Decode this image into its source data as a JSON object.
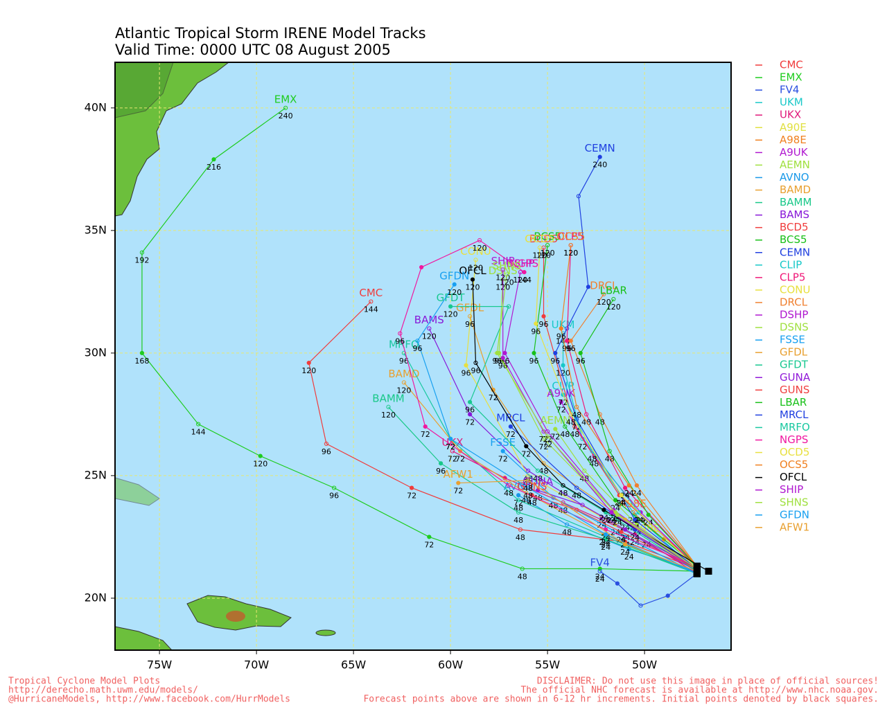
{
  "chart_data": {
    "type": "line",
    "title": "Atlantic Tropical Storm IRENE Model Tracks",
    "subtitle": "Valid Time: 0000 UTC 08 August 2005",
    "xlim": [
      -77.29,
      -45.54
    ],
    "ylim": [
      17.88,
      41.86
    ],
    "xticks": [
      {
        "value": -75,
        "label": "75W"
      },
      {
        "value": -70,
        "label": "70W"
      },
      {
        "value": -65,
        "label": "65W"
      },
      {
        "value": -60,
        "label": "60W"
      },
      {
        "value": -55,
        "label": "55W"
      },
      {
        "value": -50,
        "label": "50W"
      }
    ],
    "yticks": [
      {
        "value": 20,
        "label": "20N"
      },
      {
        "value": 25,
        "label": "25N"
      },
      {
        "value": 30,
        "label": "30N"
      },
      {
        "value": 35,
        "label": "35N"
      },
      {
        "value": 40,
        "label": "40N"
      }
    ],
    "grid": true,
    "series": [
      {
        "name": "CMC",
        "color": "#f03c3c",
        "x": [
          -47.3,
          -51,
          -56.4,
          -62.0,
          -66.4,
          -67.3,
          -64.1
        ],
        "values": [
          21.2,
          22.3,
          22.8,
          24.5,
          26.3,
          29.6,
          32.1
        ],
        "hours": [
          null,
          null,
          48,
          72,
          96,
          120,
          144
        ]
      },
      {
        "name": "EMX",
        "color": "#1ecc1e",
        "x": [
          -47.3,
          -52.3,
          -56.3,
          -61.1,
          -66.0,
          -69.8,
          -73.0,
          -75.9,
          -75.9,
          -72.2,
          -68.5
        ],
        "values": [
          21.1,
          21.2,
          21.2,
          22.5,
          24.5,
          25.8,
          27.1,
          30.0,
          34.1,
          37.9,
          40.0
        ],
        "hours": [
          null,
          24,
          48,
          72,
          96,
          120,
          144,
          168,
          192,
          216,
          240
        ]
      },
      {
        "name": "FV4",
        "color": "#2a4fe0",
        "x": [
          -47.3,
          -48.8,
          -50.2,
          -51.4,
          -52.3
        ],
        "values": [
          21.0,
          20.1,
          19.7,
          20.6,
          21.1
        ],
        "hours": [
          null,
          null,
          null,
          null,
          24
        ]
      },
      {
        "name": "UKM",
        "color": "#18c8c8",
        "x": [
          -47.3,
          -50.5,
          -53.2,
          -54.2,
          -54.2
        ],
        "values": [
          21.1,
          23.4,
          26.5,
          29.5,
          30.8
        ],
        "hours": [
          null,
          24,
          72,
          120,
          144
        ]
      },
      {
        "name": "UKX",
        "color": "#e0187a",
        "x": [
          -47.3,
          -50.5,
          -54.2,
          -57.2,
          -59.9
        ],
        "values": [
          21.0,
          22.6,
          23.9,
          24.9,
          26.0
        ],
        "hours": [
          null,
          24,
          48,
          null,
          72
        ]
      },
      {
        "name": "A90E",
        "color": "#e0e040",
        "x": [
          -47.3,
          -48.6,
          -49.9
        ],
        "values": [
          21.2,
          21.8,
          22.5
        ],
        "hours": [
          null,
          null,
          24
        ]
      },
      {
        "name": "A98E",
        "color": "#f08020",
        "x": [
          -47.3,
          -49.0,
          -50.6
        ],
        "values": [
          21.3,
          22.4,
          23.5
        ],
        "hours": [
          null,
          null,
          24
        ]
      },
      {
        "name": "A9UK",
        "color": "#b018d0",
        "x": [
          -47.3,
          -50.2,
          -52.6,
          -54.3
        ],
        "values": [
          21.3,
          23.5,
          25.8,
          28.0
        ],
        "hours": [
          null,
          24,
          48,
          72
        ]
      },
      {
        "name": "AEMN",
        "color": "#a0e040",
        "x": [
          -47.3,
          -50.4,
          -53.1,
          -54.6
        ],
        "values": [
          21.2,
          23.0,
          25.2,
          26.9
        ],
        "hours": [
          null,
          24,
          48,
          72
        ]
      },
      {
        "name": "AVNO",
        "color": "#1898e8",
        "x": [
          -47.3,
          -50.8,
          -54.0,
          -56.5
        ],
        "values": [
          21.1,
          22.0,
          23.0,
          24.2
        ],
        "hours": [
          null,
          24,
          48,
          72
        ]
      },
      {
        "name": "BAMD",
        "color": "#e8a030",
        "x": [
          -47.3,
          -52.1,
          -56.1,
          -59.5,
          -62.4
        ],
        "values": [
          21.0,
          22.6,
          24.3,
          26.0,
          28.8
        ],
        "hours": [
          null,
          24,
          48,
          72,
          120
        ]
      },
      {
        "name": "BAMM",
        "color": "#18c888",
        "x": [
          -47.3,
          -52.0,
          -56.5,
          -60.5,
          -63.2
        ],
        "values": [
          21.0,
          22.4,
          23.5,
          25.5,
          27.8
        ],
        "hours": [
          null,
          24,
          48,
          96,
          120
        ]
      },
      {
        "name": "BAMS",
        "color": "#8818d8",
        "x": [
          -47.3,
          -52.2,
          -56.0,
          -59.0,
          -61.1
        ],
        "values": [
          21.1,
          23.3,
          25.2,
          27.5,
          31.0
        ],
        "hours": [
          null,
          24,
          48,
          72,
          120
        ]
      },
      {
        "name": "BCD5",
        "color": "#f03c3c",
        "x": [
          -47.3,
          -51.3,
          -53.6,
          -55.2,
          -55.2
        ],
        "values": [
          21.3,
          24.2,
          27.0,
          31.5,
          34.3
        ],
        "hours": [
          null,
          24,
          48,
          96,
          120
        ]
      },
      {
        "name": "BCS5",
        "color": "#18c018",
        "x": [
          -47.3,
          -51.5,
          -54.1,
          -55.7,
          -55.0
        ],
        "values": [
          21.3,
          24.0,
          27.0,
          30.0,
          34.4
        ],
        "hours": [
          null,
          24,
          48,
          96,
          120
        ]
      },
      {
        "name": "CEMN",
        "color": "#2040e0",
        "x": [
          -47.3,
          -50.5,
          -53.5,
          -54.6,
          -54.0,
          -52.9,
          -53.4,
          -52.3
        ],
        "values": [
          21.2,
          23.2,
          27.3,
          30.0,
          31.0,
          32.7,
          36.4,
          38.0
        ],
        "hours": [
          null,
          24,
          72,
          96,
          null,
          null,
          null,
          240
        ]
      },
      {
        "name": "CLIP",
        "color": "#18c8c8",
        "x": [
          -47.3,
          -50.3,
          -52.7,
          -54.2
        ],
        "values": [
          21.2,
          23.5,
          26.0,
          28.3
        ],
        "hours": [
          null,
          24,
          48,
          72
        ]
      },
      {
        "name": "CLP5",
        "color": "#f01878",
        "x": [
          -47.3,
          -51.0,
          -53.0,
          -54.0,
          -53.8
        ],
        "values": [
          21.3,
          24.5,
          27.5,
          30.5,
          34.4
        ],
        "hours": [
          null,
          24,
          48,
          96,
          120
        ]
      },
      {
        "name": "CONU",
        "color": "#e8e040",
        "x": [
          -47.3,
          -51.5,
          -56.0,
          -59.2,
          -58.7
        ],
        "values": [
          21.2,
          23.0,
          25.0,
          29.5,
          33.8
        ],
        "hours": [
          null,
          24,
          48,
          96,
          120
        ]
      },
      {
        "name": "DRCL",
        "color": "#f08030",
        "x": [
          -47.3,
          -50.4,
          -52.3,
          -53.8,
          -52.1
        ],
        "values": [
          21.3,
          24.6,
          27.5,
          30.5,
          32.4
        ],
        "hours": [
          null,
          24,
          48,
          96,
          120
        ]
      },
      {
        "name": "DSHP",
        "color": "#b018d0",
        "x": [
          -47.3,
          -51.6,
          -55.0,
          -57.2,
          -56.4
        ],
        "values": [
          21.2,
          23.6,
          26.8,
          30.0,
          33.3
        ],
        "hours": [
          null,
          24,
          72,
          96,
          120
        ]
      },
      {
        "name": "DSNS",
        "color": "#a0e040",
        "x": [
          -47.3,
          -51.5,
          -55.2,
          -57.5,
          -57.3
        ],
        "values": [
          21.2,
          23.5,
          26.5,
          30.0,
          33.0
        ],
        "hours": [
          null,
          24,
          72,
          96,
          120
        ]
      },
      {
        "name": "FSSE",
        "color": "#18a0f0",
        "x": [
          -47.3,
          -51.0,
          -54.7,
          -57.3
        ],
        "values": [
          21.0,
          22.5,
          24.1,
          26.0
        ],
        "hours": [
          null,
          24,
          48,
          72
        ]
      },
      {
        "name": "GFDL",
        "color": "#e8a030",
        "x": [
          -47.3,
          -51.0,
          -55.2,
          -57.8,
          -59.0
        ],
        "values": [
          21.1,
          23.2,
          25.5,
          28.5,
          31.5
        ],
        "hours": [
          null,
          24,
          48,
          72,
          96
        ]
      },
      {
        "name": "GFDT",
        "color": "#18c890",
        "x": [
          -47.3,
          -52.0,
          -55.5,
          -59.0,
          -57.0,
          -60.0
        ],
        "values": [
          21.1,
          23.5,
          25.2,
          28.0,
          31.9,
          31.9
        ],
        "hours": [
          null,
          24,
          48,
          96,
          null,
          120
        ]
      },
      {
        "name": "GUNA",
        "color": "#9018d8",
        "x": [
          -47.3,
          -51.0,
          -53.2,
          -55.5
        ],
        "values": [
          21.2,
          22.8,
          23.8,
          24.4
        ],
        "hours": [
          null,
          24,
          null,
          48
        ]
      },
      {
        "name": "GUNS",
        "color": "#f04040",
        "x": [
          -47.3,
          -51.2,
          -53.5,
          -55.8
        ],
        "values": [
          21.2,
          22.7,
          23.6,
          24.2
        ],
        "hours": [
          null,
          24,
          null,
          48
        ]
      },
      {
        "name": "LBAR",
        "color": "#18c018",
        "x": [
          -47.3,
          -49.8,
          -51.8,
          -53.3,
          -51.6
        ],
        "values": [
          21.3,
          23.4,
          26.0,
          30.0,
          32.2
        ],
        "hours": [
          null,
          24,
          48,
          96,
          120
        ]
      },
      {
        "name": "MRCL",
        "color": "#2040e0",
        "x": [
          -47.3,
          -50.5,
          -53.5,
          -56.9
        ],
        "values": [
          21.2,
          22.8,
          24.5,
          27.0
        ],
        "hours": [
          null,
          24,
          48,
          72
        ]
      },
      {
        "name": "MRFO",
        "color": "#18c8a0",
        "x": [
          -47.3,
          -52.0,
          -56.5,
          -60.0,
          -62.4
        ],
        "values": [
          21.0,
          22.5,
          24.0,
          26.5,
          30.0
        ],
        "hours": [
          null,
          24,
          48,
          72,
          96
        ]
      },
      {
        "name": "NGPS",
        "color": "#f018a0",
        "x": [
          -47.3,
          -52.0,
          -57.0,
          -61.3,
          -62.6,
          -61.5,
          -58.5,
          -56.2
        ],
        "values": [
          21.3,
          22.8,
          24.6,
          27.0,
          30.8,
          33.5,
          34.6,
          33.3
        ],
        "hours": [
          null,
          24,
          48,
          72,
          96,
          null,
          120,
          144
        ]
      },
      {
        "name": "OCD5",
        "color": "#e8e040",
        "x": [
          -47.3,
          -51.2,
          -53.8,
          -55.6,
          -55.4
        ],
        "values": [
          21.2,
          24.2,
          27.5,
          31.2,
          34.3
        ],
        "hours": [
          null,
          24,
          48,
          96,
          120
        ]
      },
      {
        "name": "OCS5",
        "color": "#f08020",
        "x": [
          -47.3,
          -50.8,
          -53.5,
          -54.3,
          -53.8
        ],
        "values": [
          21.3,
          24.6,
          27.8,
          31.0,
          34.4
        ],
        "hours": [
          null,
          24,
          48,
          96,
          120
        ]
      },
      {
        "name": "OFCL",
        "color": "#000000",
        "x": [
          -46.7,
          -52.1,
          -54.2,
          -56.1,
          -58.7,
          -58.86
        ],
        "values": [
          21.1,
          23.6,
          24.6,
          26.2,
          29.6,
          33.0
        ],
        "hours": [
          null,
          24,
          48,
          72,
          96,
          120
        ]
      },
      {
        "name": "SHIP",
        "color": "#b018d0",
        "x": [
          -47.3,
          -51.7,
          -55.2,
          -57.3,
          -57.3
        ],
        "values": [
          21.2,
          23.5,
          26.8,
          29.8,
          33.4
        ],
        "hours": [
          null,
          24,
          72,
          96,
          120
        ]
      },
      {
        "name": "SHNS",
        "color": "#a0e040",
        "x": [
          -47.3,
          -51.4,
          -55.0,
          -57.6,
          -57.1
        ],
        "values": [
          21.2,
          23.4,
          26.6,
          30.0,
          33.2
        ],
        "hours": [
          null,
          24,
          72,
          96,
          120
        ]
      },
      {
        "name": "GFDN",
        "color": "#18a0f0",
        "x": [
          -47.3,
          -52.0,
          -56.0,
          -60.0,
          -61.7,
          -59.8
        ],
        "values": [
          21.0,
          22.6,
          24.5,
          26.5,
          30.5,
          32.8
        ],
        "hours": [
          null,
          24,
          48,
          72,
          96,
          120
        ]
      },
      {
        "name": "AFW1",
        "color": "#e8a030",
        "x": [
          -47.3,
          -51.0,
          -56.0,
          -59.6
        ],
        "values": [
          21.1,
          22.2,
          24.8,
          24.7
        ],
        "hours": [
          null,
          24,
          48,
          72
        ]
      }
    ],
    "footer_left": [
      "Tropical Cyclone Model Plots",
      "http://derecho.math.uwm.edu/models/",
      "@HurricaneModels, http://www.facebook.com/HurrModels"
    ],
    "footer_right": [
      "DISCLAIMER: Do not use this image in place of official sources!",
      "The official NHC forecast is available at http://www.nhc.noaa.gov.",
      "Forecast points above are shown in 6-12 hr increments. Initial points denoted by black squares."
    ]
  }
}
